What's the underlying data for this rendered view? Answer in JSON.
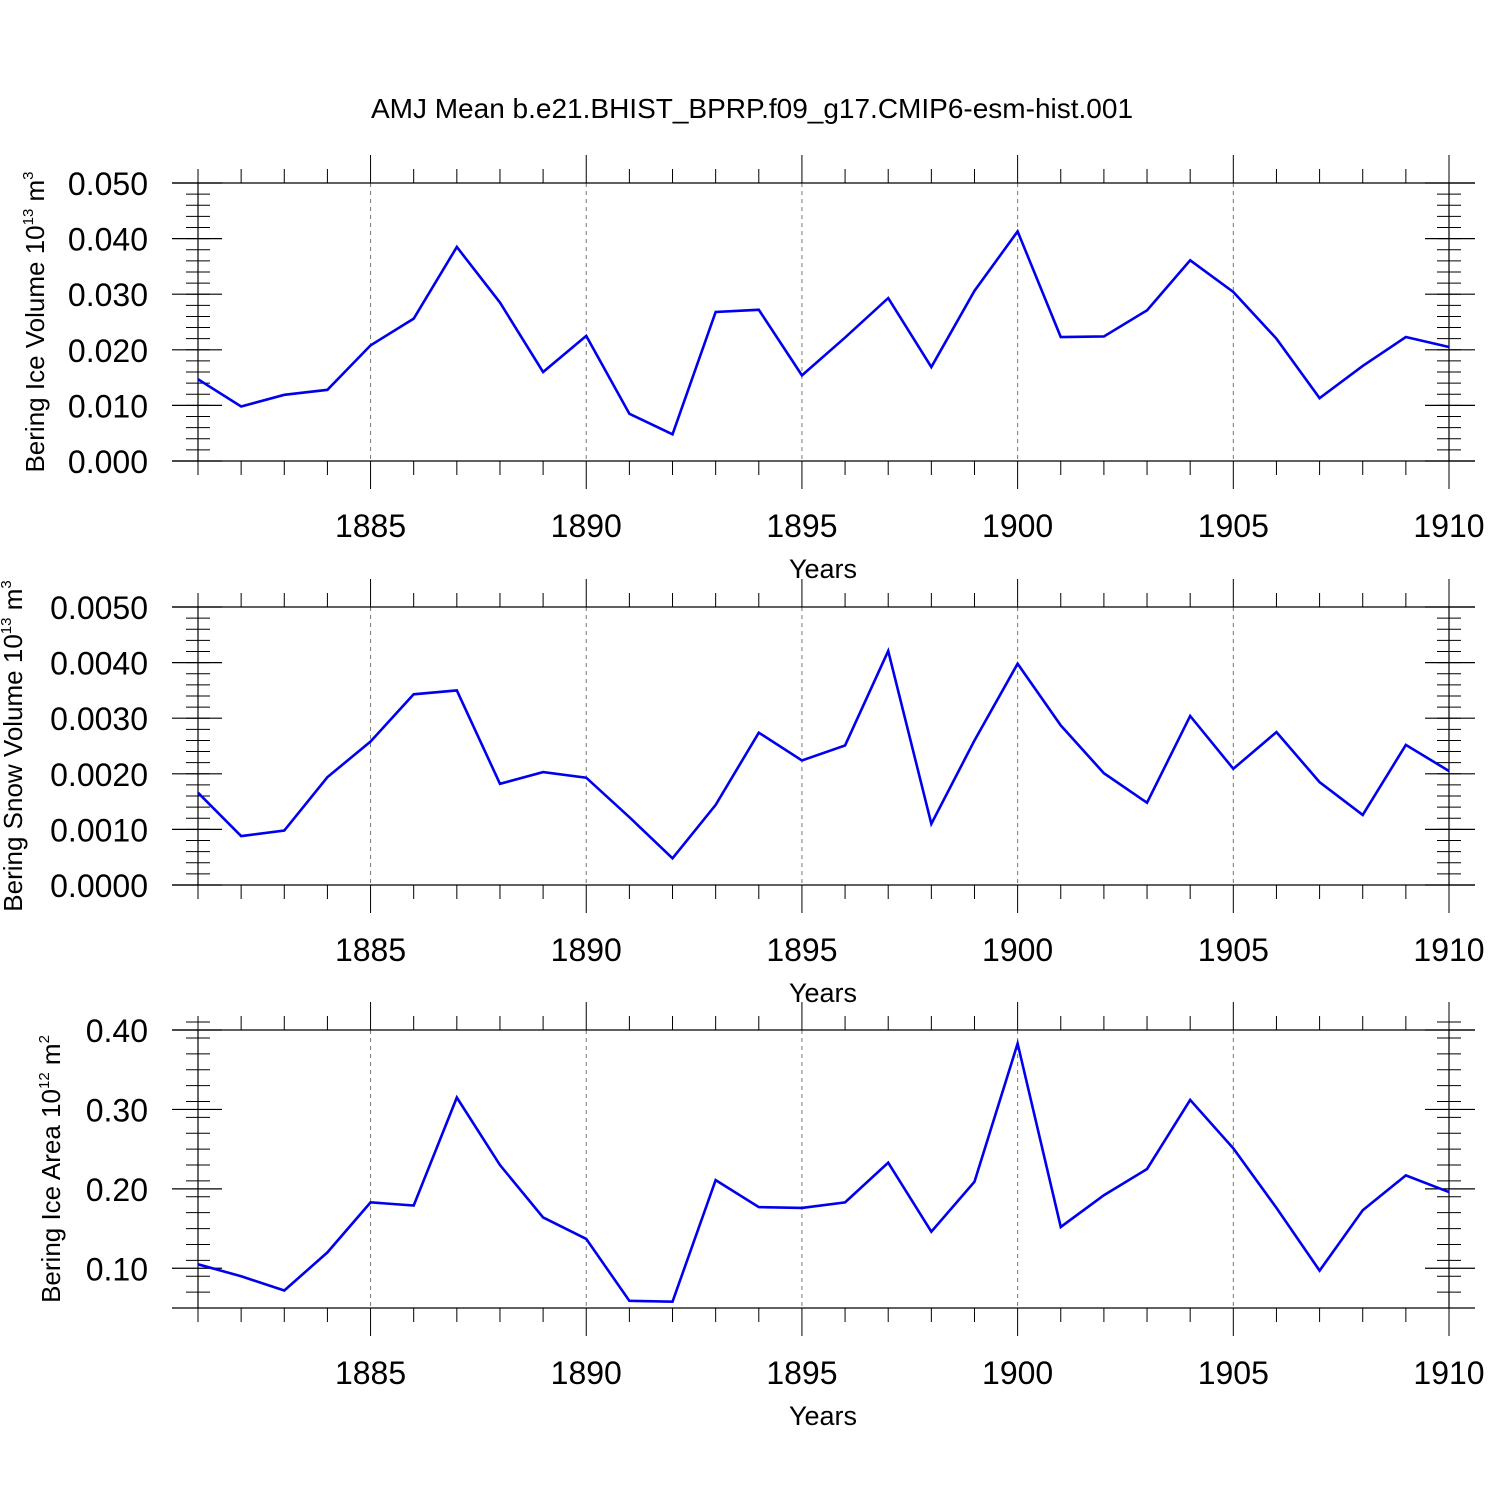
{
  "title": "AMJ Mean b.e21.BHIST_BPRP.f09_g17.CMIP6-esm-hist.001",
  "colors": {
    "line": "#0000ee",
    "axis": "#000000",
    "grid": "#777777",
    "background": "#ffffff"
  },
  "chart_data": [
    {
      "type": "line",
      "title": "AMJ Mean b.e21.BHIST_BPRP.f09_g17.CMIP6-esm-hist.001",
      "xlabel": "Years",
      "ylabel": {
        "text": "Bering Ice Volume 10",
        "exponent": "13",
        "unit": " m",
        "unit_exponent": "3"
      },
      "xlim": [
        1881,
        1910
      ],
      "ylim": [
        0.0,
        0.05
      ],
      "x_ticks": [
        1885,
        1890,
        1895,
        1900,
        1905,
        1910
      ],
      "x_tick_labels": [
        "1885",
        "1890",
        "1895",
        "1900",
        "1905",
        "1910"
      ],
      "y_ticks": [
        0.0,
        0.01,
        0.02,
        0.03,
        0.04,
        0.05
      ],
      "y_tick_labels": [
        "0.000",
        "0.010",
        "0.020",
        "0.030",
        "0.040",
        "0.050"
      ],
      "y_minor_step": 0.002,
      "grid": "vertical dashed at major x ticks",
      "x": [
        1881,
        1882,
        1883,
        1884,
        1885,
        1886,
        1887,
        1888,
        1889,
        1890,
        1891,
        1892,
        1893,
        1894,
        1895,
        1896,
        1897,
        1898,
        1899,
        1900,
        1901,
        1902,
        1903,
        1904,
        1905,
        1906,
        1907,
        1908,
        1909,
        1910
      ],
      "series": [
        {
          "name": "Bering Ice Volume",
          "values": [
            0.0147,
            0.0098,
            0.0119,
            0.0128,
            0.0208,
            0.0256,
            0.0385,
            0.0285,
            0.016,
            0.0225,
            0.0085,
            0.0048,
            0.0268,
            0.0272,
            0.0154,
            0.0222,
            0.0293,
            0.0169,
            0.0306,
            0.0413,
            0.0223,
            0.0224,
            0.0271,
            0.0361,
            0.0304,
            0.022,
            0.0113,
            0.0171,
            0.0223,
            0.0205
          ]
        }
      ]
    },
    {
      "type": "line",
      "xlabel": "Years",
      "ylabel": {
        "text": "Bering Snow Volume 10",
        "exponent": "13",
        "unit": " m",
        "unit_exponent": "3"
      },
      "xlim": [
        1881,
        1910
      ],
      "ylim": [
        0.0,
        0.005
      ],
      "x_ticks": [
        1885,
        1890,
        1895,
        1900,
        1905,
        1910
      ],
      "x_tick_labels": [
        "1885",
        "1890",
        "1895",
        "1900",
        "1905",
        "1910"
      ],
      "y_ticks": [
        0.0,
        0.001,
        0.002,
        0.003,
        0.004,
        0.005
      ],
      "y_tick_labels": [
        "0.0000",
        "0.0010",
        "0.0020",
        "0.0030",
        "0.0040",
        "0.0050"
      ],
      "y_minor_step": 0.0002,
      "grid": "vertical dashed at major x ticks",
      "x": [
        1881,
        1882,
        1883,
        1884,
        1885,
        1886,
        1887,
        1888,
        1889,
        1890,
        1891,
        1892,
        1893,
        1894,
        1895,
        1896,
        1897,
        1898,
        1899,
        1900,
        1901,
        1902,
        1903,
        1904,
        1905,
        1906,
        1907,
        1908,
        1909,
        1910
      ],
      "series": [
        {
          "name": "Bering Snow Volume",
          "values": [
            0.00166,
            0.00088,
            0.00098,
            0.00194,
            0.00258,
            0.00343,
            0.0035,
            0.00182,
            0.00203,
            0.00193,
            0.00122,
            0.00048,
            0.00144,
            0.00274,
            0.00224,
            0.00251,
            0.00421,
            0.0011,
            0.0026,
            0.00398,
            0.00287,
            0.00201,
            0.00148,
            0.00304,
            0.00209,
            0.00275,
            0.00185,
            0.00126,
            0.00252,
            0.00205
          ]
        }
      ]
    },
    {
      "type": "line",
      "xlabel": "Years",
      "ylabel": {
        "text": "Bering Ice Area 10",
        "exponent": "12",
        "unit": " m",
        "unit_exponent": "2"
      },
      "xlim": [
        1881,
        1910
      ],
      "ylim": [
        0.05,
        0.4
      ],
      "x_ticks": [
        1885,
        1890,
        1895,
        1900,
        1905,
        1910
      ],
      "x_tick_labels": [
        "1885",
        "1890",
        "1895",
        "1900",
        "1905",
        "1910"
      ],
      "y_ticks": [
        0.1,
        0.2,
        0.3,
        0.4
      ],
      "y_tick_labels": [
        "0.10",
        "0.20",
        "0.30",
        "0.40"
      ],
      "y_minor_step": 0.02,
      "grid": "vertical dashed at major x ticks",
      "x": [
        1881,
        1882,
        1883,
        1884,
        1885,
        1886,
        1887,
        1888,
        1889,
        1890,
        1891,
        1892,
        1893,
        1894,
        1895,
        1896,
        1897,
        1898,
        1899,
        1900,
        1901,
        1902,
        1903,
        1904,
        1905,
        1906,
        1907,
        1908,
        1909,
        1910
      ],
      "series": [
        {
          "name": "Bering Ice Area",
          "values": [
            0.105,
            0.09,
            0.072,
            0.12,
            0.183,
            0.179,
            0.315,
            0.23,
            0.164,
            0.137,
            0.059,
            0.058,
            0.211,
            0.177,
            0.176,
            0.183,
            0.233,
            0.146,
            0.209,
            0.383,
            0.152,
            0.192,
            0.225,
            0.312,
            0.251,
            0.176,
            0.097,
            0.173,
            0.217,
            0.196
          ]
        }
      ]
    }
  ]
}
